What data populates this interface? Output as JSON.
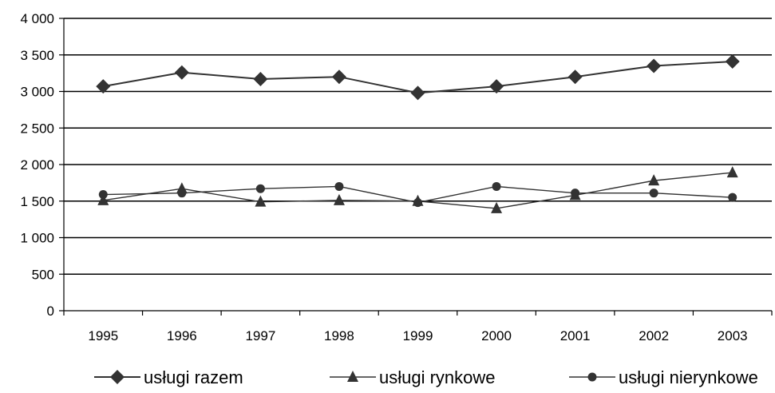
{
  "chart_data": {
    "type": "line",
    "categories": [
      "1995",
      "1996",
      "1997",
      "1998",
      "1999",
      "2000",
      "2001",
      "2002",
      "2003"
    ],
    "ylim": [
      0,
      4000
    ],
    "yticks": [
      0,
      500,
      1000,
      1500,
      2000,
      2500,
      3000,
      3500,
      4000
    ],
    "ytick_labels": [
      "0",
      "500",
      "1 000",
      "1 500",
      "2 000",
      "2 500",
      "3 000",
      "3 500",
      "4 000"
    ],
    "grid": true,
    "legend_position": "bottom",
    "series": [
      {
        "name": "usługi razem",
        "marker": "diamond",
        "color": "#333333",
        "values": [
          3070,
          3260,
          3170,
          3200,
          2980,
          3070,
          3200,
          3350,
          3410
        ]
      },
      {
        "name": "usługi rynkowe",
        "marker": "triangle",
        "color": "#333333",
        "values": [
          1510,
          1670,
          1490,
          1510,
          1500,
          1400,
          1580,
          1780,
          1890
        ]
      },
      {
        "name": "usługi nierynkowe",
        "marker": "circle",
        "color": "#333333",
        "values": [
          1590,
          1610,
          1670,
          1700,
          1480,
          1700,
          1610,
          1610,
          1550
        ]
      }
    ]
  }
}
